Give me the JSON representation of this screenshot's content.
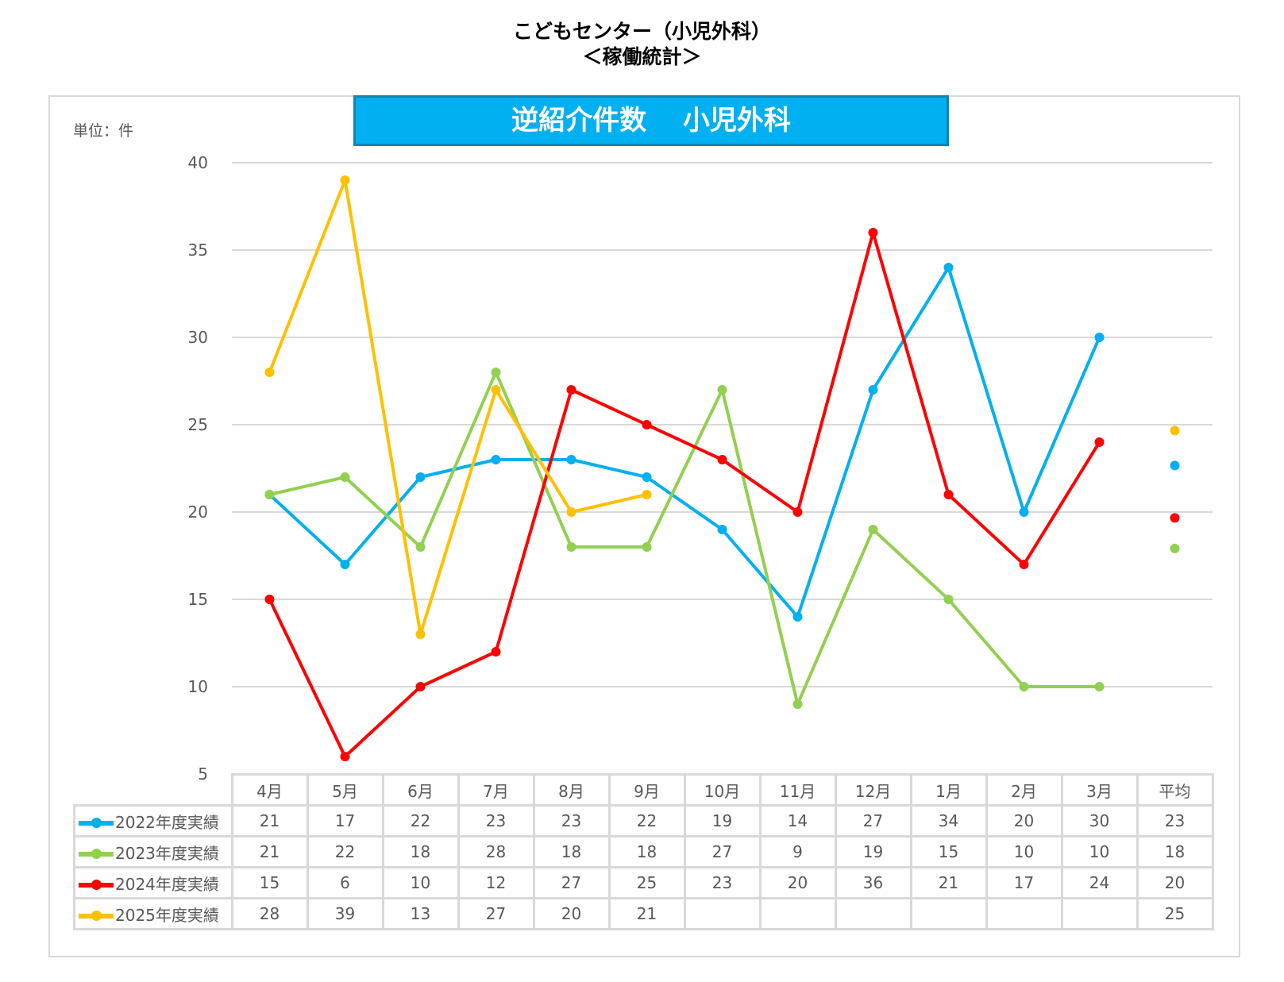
{
  "header": {
    "title": "こどもセンター（小児外科）",
    "subtitle": "＜稼働統計＞"
  },
  "chart_data": {
    "type": "line",
    "title": "逆紹介件数　 小児外科",
    "unit_label": "単位：件",
    "categories": [
      "4月",
      "5月",
      "6月",
      "7月",
      "8月",
      "9月",
      "10月",
      "11月",
      "12月",
      "1月",
      "2月",
      "3月"
    ],
    "average_label": "平均",
    "ylim": [
      5,
      40
    ],
    "yticks": [
      5,
      10,
      15,
      20,
      25,
      30,
      35,
      40
    ],
    "grid": true,
    "legend": "table-bottom",
    "series": [
      {
        "name": "2022年度実績",
        "color": "#00b0f0",
        "values": [
          21,
          17,
          22,
          23,
          23,
          22,
          19,
          14,
          27,
          34,
          20,
          30
        ],
        "average": 23
      },
      {
        "name": "2023年度実績",
        "color": "#92d050",
        "values": [
          21,
          22,
          18,
          28,
          18,
          18,
          27,
          9,
          19,
          15,
          10,
          10
        ],
        "average": 18
      },
      {
        "name": "2024年度実績",
        "color": "#ff0000",
        "values": [
          15,
          6,
          10,
          12,
          27,
          25,
          23,
          20,
          36,
          21,
          17,
          24
        ],
        "average": 20
      },
      {
        "name": "2025年度実績",
        "color": "#ffc000",
        "values": [
          28,
          39,
          13,
          27,
          20,
          21,
          null,
          null,
          null,
          null,
          null,
          null
        ],
        "average": 25
      }
    ]
  }
}
